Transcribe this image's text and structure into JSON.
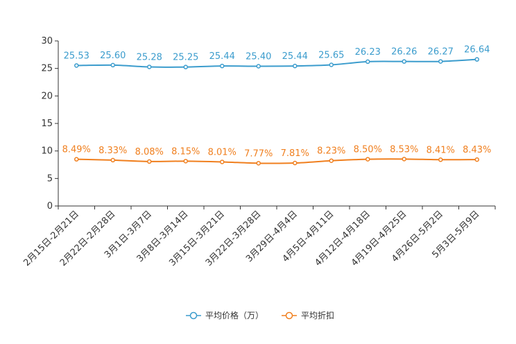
{
  "chart_data": {
    "type": "line",
    "title": "",
    "xlabel": "",
    "ylabel": "",
    "ylim": [
      0,
      30
    ],
    "yticks": [
      "0",
      "5",
      "10",
      "15",
      "20",
      "25",
      "30"
    ],
    "yticks_values": [
      0,
      5,
      10,
      15,
      20,
      25,
      30
    ],
    "categories": [
      "2月15日-2月21日",
      "2月22日-2月28日",
      "3月1日-3月7日",
      "3月8日-3月14日",
      "3月15日-3月21日",
      "3月22日-3月28日",
      "3月29日-4月4日",
      "4月5日-4月11日",
      "4月12日-4月18日",
      "4月19日-4月25日",
      "4月26日-5月2日",
      "5月3日-5月9日"
    ],
    "series": [
      {
        "name": "平均价格（万）",
        "color": "#3b9ccd",
        "values": [
          25.53,
          25.6,
          25.28,
          25.25,
          25.44,
          25.4,
          25.44,
          25.65,
          26.23,
          26.26,
          26.27,
          26.64
        ],
        "labels": [
          "25.53",
          "25.60",
          "25.28",
          "25.25",
          "25.44",
          "25.40",
          "25.44",
          "25.65",
          "26.23",
          "26.26",
          "26.27",
          "26.64"
        ]
      },
      {
        "name": "平均折扣",
        "color": "#f07f1e",
        "values": [
          8.49,
          8.33,
          8.08,
          8.15,
          8.01,
          7.77,
          7.81,
          8.23,
          8.5,
          8.53,
          8.41,
          8.43
        ],
        "labels": [
          "8.49%",
          "8.33%",
          "8.08%",
          "8.15%",
          "8.01%",
          "7.77%",
          "7.81%",
          "8.23%",
          "8.50%",
          "8.53%",
          "8.41%",
          "8.43%"
        ]
      }
    ],
    "legend_position": "bottom-center"
  }
}
